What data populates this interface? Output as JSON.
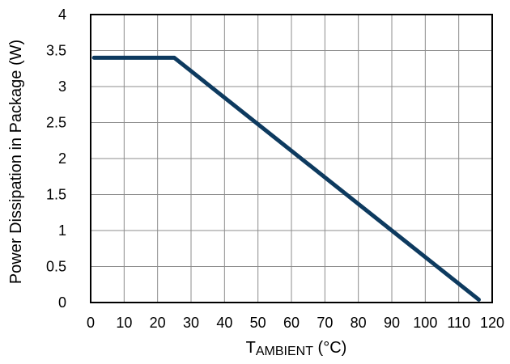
{
  "chart_data": {
    "type": "line",
    "xlabel": "T",
    "xlabel_subscript": "AMBIENT",
    "xlabel_unit": " (°C)",
    "ylabel": "Power Dissipation in Package (W)",
    "xlim": [
      0,
      120
    ],
    "ylim": [
      0,
      4
    ],
    "x_ticks": [
      "0",
      "10",
      "20",
      "30",
      "40",
      "50",
      "60",
      "70",
      "80",
      "90",
      "100",
      "110",
      "120"
    ],
    "y_ticks": [
      "0",
      "0.5",
      "1",
      "1.5",
      "2",
      "2.5",
      "3",
      "3.5",
      "4"
    ],
    "grid": true,
    "colors": {
      "series": "#0d3a5f",
      "grid": "#8c8c8c",
      "border": "#000000"
    },
    "series": [
      {
        "x": [
          1,
          25,
          116
        ],
        "y": [
          3.4,
          3.4,
          0.04
        ]
      }
    ]
  }
}
